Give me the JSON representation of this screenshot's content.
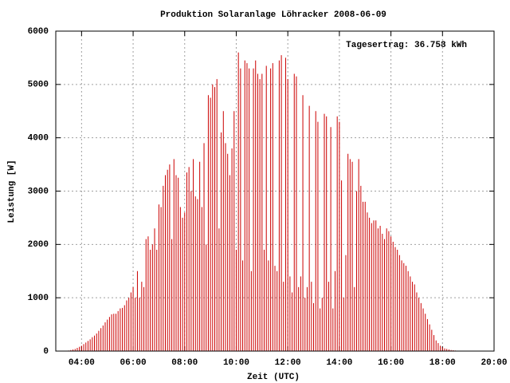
{
  "chart_data": {
    "type": "impulse",
    "title": "Produktion Solaranlage Löhracker 2008-06-09",
    "annotation": "Tagesertrag: 36.758 kWh",
    "x_label": "Zeit (UTC)",
    "y_label": "Leistung [W]",
    "color": "#cc0000",
    "grid": true,
    "xlim": [
      180,
      1200
    ],
    "ylim": [
      0,
      6000
    ],
    "xticks": [
      {
        "value": 240,
        "label": "04:00"
      },
      {
        "value": 360,
        "label": "06:00"
      },
      {
        "value": 480,
        "label": "08:00"
      },
      {
        "value": 600,
        "label": "10:00"
      },
      {
        "value": 720,
        "label": "12:00"
      },
      {
        "value": 840,
        "label": "14:00"
      },
      {
        "value": 960,
        "label": "16:00"
      },
      {
        "value": 1080,
        "label": "18:00"
      },
      {
        "value": 1200,
        "label": "20:00"
      }
    ],
    "yticks": [
      0,
      1000,
      2000,
      3000,
      4000,
      5000,
      6000
    ],
    "x": [
      210,
      215,
      220,
      225,
      230,
      235,
      240,
      245,
      250,
      255,
      260,
      265,
      270,
      275,
      280,
      285,
      290,
      295,
      300,
      305,
      310,
      315,
      320,
      325,
      330,
      335,
      340,
      345,
      350,
      355,
      360,
      365,
      370,
      375,
      380,
      385,
      390,
      395,
      400,
      405,
      410,
      415,
      420,
      425,
      430,
      435,
      440,
      445,
      450,
      455,
      460,
      465,
      470,
      475,
      480,
      485,
      490,
      495,
      500,
      505,
      510,
      515,
      520,
      525,
      530,
      535,
      540,
      545,
      550,
      555,
      560,
      565,
      570,
      575,
      580,
      585,
      590,
      595,
      600,
      605,
      610,
      615,
      620,
      625,
      630,
      635,
      640,
      645,
      650,
      655,
      660,
      665,
      670,
      675,
      680,
      685,
      690,
      695,
      700,
      705,
      710,
      715,
      720,
      725,
      730,
      735,
      740,
      745,
      750,
      755,
      760,
      765,
      770,
      775,
      780,
      785,
      790,
      795,
      800,
      805,
      810,
      815,
      820,
      825,
      830,
      835,
      840,
      845,
      850,
      855,
      860,
      865,
      870,
      875,
      880,
      885,
      890,
      895,
      900,
      905,
      910,
      915,
      920,
      925,
      930,
      935,
      940,
      945,
      950,
      955,
      960,
      965,
      970,
      975,
      980,
      985,
      990,
      995,
      1000,
      1005,
      1010,
      1015,
      1020,
      1025,
      1030,
      1035,
      1040,
      1045,
      1050,
      1055,
      1060,
      1065,
      1070,
      1075,
      1080,
      1085,
      1090,
      1095,
      1100,
      1105,
      1110,
      1115,
      1120,
      1125,
      1130,
      1135
    ],
    "values": [
      10,
      20,
      30,
      40,
      60,
      80,
      100,
      130,
      160,
      190,
      220,
      260,
      290,
      330,
      380,
      430,
      480,
      540,
      590,
      640,
      690,
      700,
      700,
      750,
      800,
      810,
      860,
      950,
      1000,
      1100,
      1200,
      1000,
      1500,
      1000,
      1300,
      1200,
      2100,
      2150,
      1900,
      2000,
      2300,
      1900,
      2750,
      2700,
      3100,
      3300,
      3400,
      3500,
      2100,
      3600,
      3300,
      3250,
      2700,
      2500,
      2600,
      3350,
      3450,
      3000,
      3600,
      2900,
      2850,
      3550,
      2700,
      3900,
      2000,
      4800,
      4750,
      5000,
      4950,
      5100,
      2300,
      4100,
      4500,
      3900,
      3700,
      3300,
      3800,
      4500,
      1900,
      5600,
      5300,
      1700,
      5450,
      5400,
      5300,
      1500,
      5300,
      5450,
      5200,
      5100,
      5200,
      1900,
      5350,
      1700,
      5300,
      5400,
      1600,
      1500,
      5450,
      5550,
      1300,
      5500,
      5100,
      1400,
      1100,
      5200,
      5150,
      1200,
      1400,
      4800,
      1000,
      1200,
      4600,
      1300,
      900,
      4500,
      4300,
      800,
      1000,
      4450,
      4400,
      1300,
      4200,
      800,
      1500,
      4400,
      4300,
      3200,
      1000,
      1800,
      3700,
      3600,
      3550,
      1200,
      3000,
      3600,
      3100,
      2800,
      2800,
      2600,
      2500,
      2400,
      2450,
      2450,
      2300,
      2350,
      2200,
      2100,
      2300,
      2250,
      2150,
      2050,
      1950,
      1900,
      1800,
      1700,
      1650,
      1600,
      1500,
      1400,
      1300,
      1250,
      1100,
      1000,
      900,
      800,
      700,
      600,
      500,
      400,
      300,
      200,
      150,
      100,
      70,
      50,
      40,
      30,
      20,
      15,
      10,
      5,
      5,
      0,
      0,
      0
    ]
  }
}
